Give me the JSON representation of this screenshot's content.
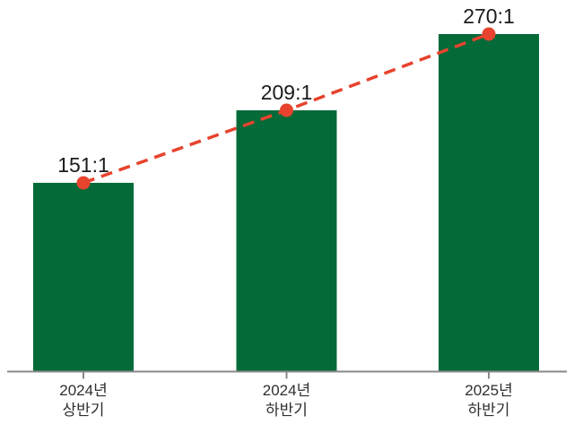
{
  "chart_data": {
    "type": "bar",
    "subtype": "bar-with-trend-line",
    "title": "",
    "xlabel": "",
    "ylabel": "",
    "categories": [
      "2024년 상반기",
      "2024년 하반기",
      "2025년 하반기"
    ],
    "categories_lines": [
      [
        "2024년",
        "상반기"
      ],
      [
        "2024년",
        "하반기"
      ],
      [
        "2025년",
        "하반기"
      ]
    ],
    "values": [
      151,
      209,
      270
    ],
    "value_labels": [
      "151:1",
      "209:1",
      "270:1"
    ],
    "ylim": [
      0,
      300
    ],
    "grid": false,
    "legend": "none",
    "colors": {
      "bar": "#046a38",
      "trend_line": "#e7432e",
      "marker": "#e7432e",
      "value_text": "#1b1b1b",
      "category_text": "#2f2f2f",
      "axis": "#898989",
      "background": "#ffffff"
    }
  }
}
